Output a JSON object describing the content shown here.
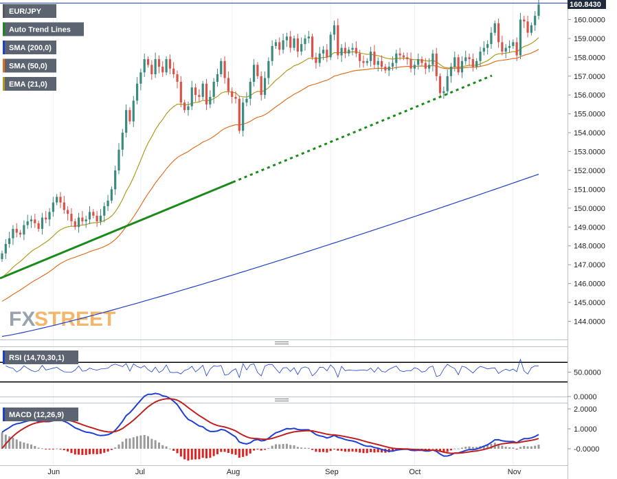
{
  "chart_data": {
    "type": "candlestick",
    "symbol": "EUR/JPY",
    "last_price": "160.8430",
    "price_axis": {
      "ticks": [
        "144.0000",
        "145.0000",
        "146.0000",
        "147.0000",
        "148.0000",
        "149.0000",
        "150.0000",
        "151.0000",
        "152.0000",
        "153.0000",
        "154.0000",
        "155.0000",
        "156.0000",
        "157.0000",
        "158.0000",
        "159.0000",
        "160.0000"
      ],
      "ylim": [
        143.1,
        160.9
      ]
    },
    "x_ticks": [
      "Jun",
      "Jul",
      "Aug",
      "Sep",
      "Oct",
      "Nov"
    ],
    "legend": [
      {
        "label": "EUR/JPY",
        "color": "#555555"
      },
      {
        "label": "Auto Trend Lines",
        "color": "#1a8a1a"
      },
      {
        "label": "SMA (200,0)",
        "color": "#2040c8"
      },
      {
        "label": "SMA (50,0)",
        "color": "#e07020"
      },
      {
        "label": "EMA (21,0)",
        "color": "#b09a20"
      }
    ],
    "up_color": "#3a8a7e",
    "down_color": "#d9534a",
    "closes": [
      147.6,
      148.1,
      148.4,
      148.9,
      148.7,
      148.6,
      149.1,
      149.3,
      149.4,
      149.2,
      148.9,
      149.5,
      149.4,
      149.8,
      150.3,
      150.6,
      150.3,
      149.9,
      149.7,
      149.3,
      149.0,
      149.5,
      149.3,
      149.4,
      149.8,
      149.6,
      149.3,
      149.6,
      150.1,
      150.4,
      151.0,
      152.0,
      153.1,
      154.0,
      155.2,
      154.6,
      155.7,
      156.6,
      157.2,
      157.9,
      157.6,
      157.1,
      157.9,
      157.5,
      157.2,
      157.9,
      157.4,
      157.1,
      156.7,
      155.6,
      155.2,
      155.4,
      156.4,
      156.0,
      155.9,
      156.6,
      155.5,
      155.9,
      156.7,
      157.1,
      157.8,
      156.9,
      156.2,
      155.9,
      155.8,
      154.1,
      155.6,
      155.8,
      156.7,
      157.6,
      157.0,
      156.0,
      156.9,
      157.8,
      158.6,
      158.8,
      158.4,
      158.9,
      159.1,
      158.5,
      159.0,
      158.3,
      158.7,
      159.0,
      159.1,
      158.0,
      157.7,
      158.2,
      158.4,
      158.0,
      159.2,
      159.7,
      158.1,
      158.5,
      158.2,
      158.4,
      158.5,
      158.2,
      157.8,
      157.7,
      157.8,
      158.3,
      157.6,
      157.8,
      157.5,
      157.3,
      157.5,
      157.7,
      158.2,
      158.1,
      158.0,
      157.9,
      157.4,
      157.6,
      157.9,
      157.7,
      157.4,
      157.6,
      158.2,
      157.0,
      156.1,
      156.2,
      157.0,
      157.5,
      158.0,
      157.2,
      157.8,
      158.0,
      157.9,
      157.5,
      157.8,
      158.3,
      158.5,
      158.7,
      159.3,
      159.8,
      158.8,
      158.3,
      158.5,
      158.6,
      158.8,
      158.1,
      160.0,
      159.9,
      159.3,
      159.7,
      160.2,
      160.8
    ],
    "rsi": {
      "label": "RSI (14,70,30,1)",
      "ticks": [
        "50.0000",
        "0.0000"
      ],
      "levels": [
        70,
        30
      ]
    },
    "macd": {
      "label": "MACD (12,26,9)",
      "ticks": [
        "2.0000",
        "1.0000",
        "-0.0000"
      ],
      "macd_color": "#1d3fd6",
      "signal_color": "#c02020",
      "hist_pos_color": "#999999",
      "hist_neg_color": "#e02020"
    },
    "trendline_label": "Auto Trend Lines",
    "watermark": {
      "part1": "FX",
      "part2": "STREET"
    }
  }
}
